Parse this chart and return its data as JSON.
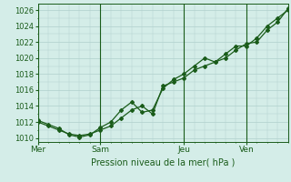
{
  "title": "Pression niveau de la mer( hPa )",
  "bg_color": "#d4ede8",
  "plot_bg_color": "#d4ede8",
  "grid_color": "#b0d0cc",
  "line_color": "#1a5c1a",
  "ylim": [
    1009.5,
    1026.8
  ],
  "yticks": [
    1010,
    1012,
    1014,
    1016,
    1018,
    1020,
    1022,
    1024,
    1026
  ],
  "day_labels": [
    "Mer",
    "Sam",
    "Jeu",
    "Ven"
  ],
  "day_positions": [
    0,
    3,
    7,
    10
  ],
  "xlim": [
    0,
    12
  ],
  "line1_x": [
    0,
    0.5,
    1,
    1.5,
    2,
    2.5,
    3,
    3.5,
    4,
    4.5,
    5,
    5.5,
    6,
    6.5,
    7,
    7.5,
    8,
    8.5,
    9,
    9.5,
    10,
    10.5,
    11,
    11.5,
    12
  ],
  "line1_y": [
    1012.0,
    1011.5,
    1011.0,
    1010.5,
    1010.3,
    1010.5,
    1011.0,
    1011.5,
    1012.5,
    1013.5,
    1014.0,
    1013.0,
    1016.5,
    1017.0,
    1017.5,
    1018.5,
    1019.0,
    1019.5,
    1020.5,
    1021.5,
    1021.5,
    1022.5,
    1024.0,
    1025.0,
    1026.0
  ],
  "line2_x": [
    0,
    0.5,
    1,
    1.5,
    2,
    2.5,
    3,
    3.5,
    4,
    4.5,
    5,
    5.5,
    6,
    6.5,
    7,
    7.5,
    8,
    8.5,
    9,
    9.5,
    10,
    10.5,
    11,
    11.5,
    12
  ],
  "line2_y": [
    1012.2,
    1011.7,
    1011.2,
    1010.4,
    1010.1,
    1010.4,
    1011.3,
    1012.0,
    1013.5,
    1014.5,
    1013.2,
    1013.5,
    1016.2,
    1017.3,
    1018.0,
    1019.0,
    1020.0,
    1019.5,
    1020.0,
    1021.0,
    1021.8,
    1022.0,
    1023.5,
    1024.5,
    1026.2
  ],
  "marker_x1": [
    0,
    0.5,
    1,
    1.5,
    2,
    2.5,
    3,
    3.5,
    4,
    4.5,
    5,
    5.5,
    6,
    6.5,
    7,
    7.5,
    8,
    8.5,
    9,
    9.5,
    10,
    10.5,
    11,
    11.5,
    12
  ],
  "marker_y1": [
    1012.0,
    1011.5,
    1011.0,
    1010.5,
    1010.3,
    1010.5,
    1011.0,
    1011.5,
    1012.5,
    1013.5,
    1014.0,
    1013.0,
    1016.5,
    1017.0,
    1017.5,
    1018.5,
    1019.0,
    1019.5,
    1020.5,
    1021.5,
    1021.5,
    1022.5,
    1024.0,
    1025.0,
    1026.0
  ],
  "marker_x2": [
    0,
    0.5,
    1,
    1.5,
    2,
    2.5,
    3,
    3.5,
    4,
    4.5,
    5,
    5.5,
    6,
    6.5,
    7,
    7.5,
    8,
    8.5,
    9,
    9.5,
    10,
    10.5,
    11,
    11.5,
    12
  ],
  "marker_y2": [
    1012.2,
    1011.7,
    1011.2,
    1010.4,
    1010.1,
    1010.4,
    1011.3,
    1012.0,
    1013.5,
    1014.5,
    1013.2,
    1013.5,
    1016.2,
    1017.3,
    1018.0,
    1019.0,
    1020.0,
    1019.5,
    1020.0,
    1021.0,
    1021.8,
    1022.0,
    1023.5,
    1024.5,
    1026.2
  ]
}
